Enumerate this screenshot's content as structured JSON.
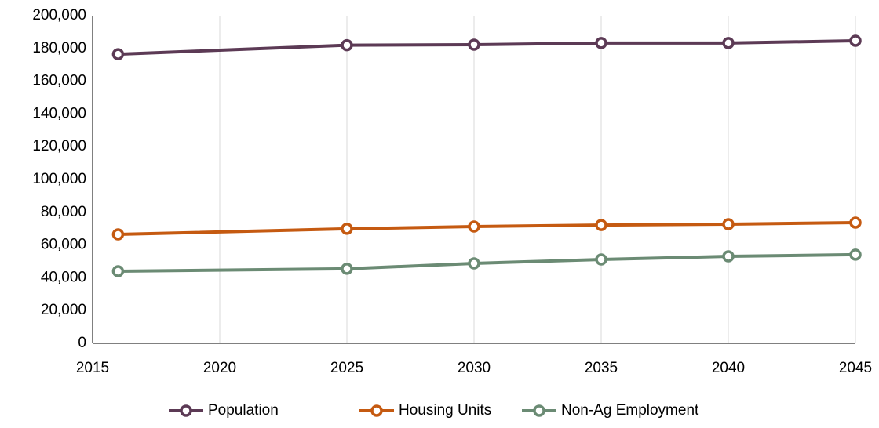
{
  "chart_data": {
    "type": "line",
    "x": [
      2016,
      2025,
      2030,
      2035,
      2040,
      2045
    ],
    "series": [
      {
        "name": "Population",
        "color": "#5c3a55",
        "values": [
          176500,
          182000,
          182300,
          183300,
          183300,
          184700
        ]
      },
      {
        "name": "Housing Units",
        "color": "#c55a11",
        "values": [
          66500,
          69900,
          71300,
          72200,
          72700,
          73700
        ]
      },
      {
        "name": "Non-Ag Employment",
        "color": "#6b8b74",
        "values": [
          44000,
          45500,
          48800,
          51200,
          53100,
          54100
        ]
      }
    ],
    "xlim": [
      2015,
      2045
    ],
    "xticks": [
      2015,
      2020,
      2025,
      2030,
      2035,
      2040,
      2045
    ],
    "ylim": [
      0,
      200000
    ],
    "yticks": [
      0,
      {
        "value": 20000,
        "label": "20,000"
      },
      {
        "value": 40000,
        "label": "40,000"
      },
      {
        "value": 60000,
        "label": "60,000"
      },
      {
        "value": 80000,
        "label": "80,000"
      },
      {
        "value": 100000,
        "label": "100,000"
      },
      {
        "value": 120000,
        "label": "120,000"
      },
      {
        "value": 140000,
        "label": "140,000"
      },
      {
        "value": 160000,
        "label": "160,000"
      },
      {
        "value": 180000,
        "label": "180,000"
      },
      {
        "value": 200000,
        "label": "200,000"
      }
    ],
    "grid": true,
    "legend": "bottom"
  }
}
